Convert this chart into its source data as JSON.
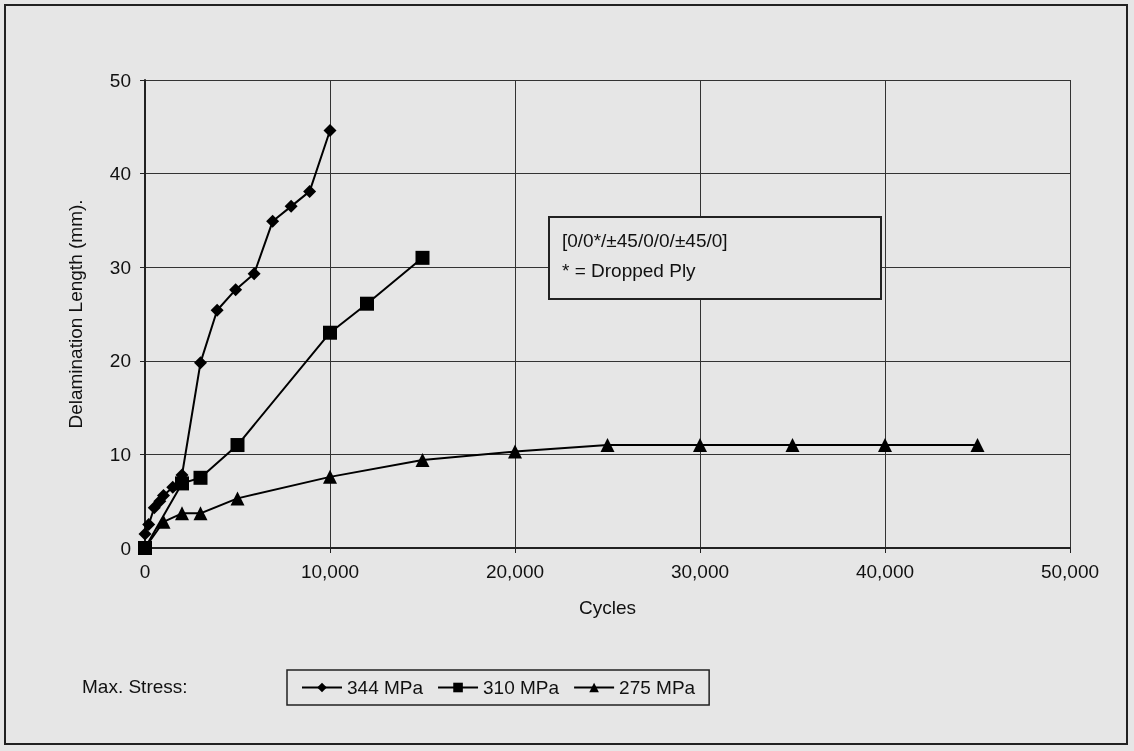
{
  "chart_data": {
    "type": "line",
    "xlabel": "Cycles",
    "ylabel": "Delamination Length (mm).",
    "legend_title": "Max. Stress:",
    "legend": "bottom",
    "grid": true,
    "line_style": "solid",
    "xlim": [
      0,
      50000
    ],
    "xticks": [
      0,
      {
        "value": 10000,
        "label": "10,000"
      },
      {
        "value": 20000,
        "label": "20,000"
      },
      {
        "value": 30000,
        "label": "30,000"
      },
      {
        "value": 40000,
        "label": "40,000"
      },
      {
        "value": 50000,
        "label": "50,000"
      }
    ],
    "ylim": [
      0,
      50
    ],
    "yticks": [
      0,
      10,
      20,
      30,
      40,
      50
    ],
    "annotations": [
      "[0/0*/±45/0/0/±45/0]",
      "* = Dropped Ply"
    ],
    "series": [
      {
        "name": "344 MPa",
        "color": "#000000",
        "marker": "diamond",
        "x": [
          0,
          200,
          500,
          800,
          1000,
          1500,
          2000,
          3000,
          3900,
          4900,
          5900,
          6900,
          7900,
          8900,
          10000
        ],
        "values": [
          1.5,
          2.5,
          4.3,
          5.0,
          5.6,
          6.5,
          7.8,
          19.8,
          25.4,
          27.6,
          29.3,
          34.9,
          36.5,
          38.1,
          44.6
        ]
      },
      {
        "name": "310 MPa",
        "color": "#000000",
        "marker": "square",
        "x": [
          0,
          2000,
          3000,
          5000,
          10000,
          12000,
          15000
        ],
        "values": [
          0,
          6.9,
          7.5,
          11,
          23,
          26.1,
          31
        ]
      },
      {
        "name": "275 MPa",
        "color": "#000000",
        "marker": "triangle",
        "x": [
          0,
          1000,
          2000,
          3000,
          5000,
          10000,
          15000,
          20000,
          25000,
          30000,
          35000,
          40000,
          45000
        ],
        "values": [
          0,
          2.8,
          3.7,
          3.7,
          5.3,
          7.6,
          9.4,
          10.3,
          11,
          11,
          11,
          11,
          11
        ]
      }
    ]
  }
}
